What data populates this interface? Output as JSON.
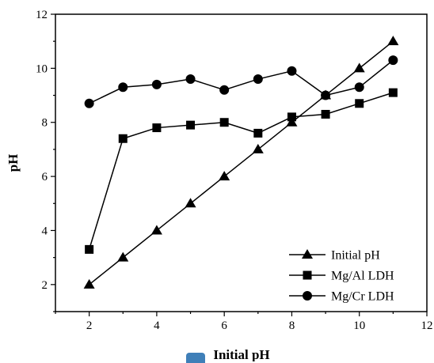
{
  "chart_data": {
    "type": "line",
    "title": "",
    "xlabel": "Initial pH",
    "ylabel": "pH",
    "xlim": [
      1,
      12
    ],
    "ylim": [
      1,
      12
    ],
    "xticks": [
      2,
      4,
      6,
      8,
      10,
      12
    ],
    "yticks": [
      2,
      4,
      6,
      8,
      10,
      12
    ],
    "x": [
      2,
      3,
      4,
      5,
      6,
      7,
      8,
      9,
      10,
      11
    ],
    "series": [
      {
        "name": "Initial pH",
        "marker": "triangle",
        "values": [
          2,
          3,
          4,
          5,
          6,
          7,
          8,
          9,
          10,
          11
        ]
      },
      {
        "name": "Mg/Al LDH",
        "marker": "square",
        "values": [
          3.3,
          7.4,
          7.8,
          7.9,
          8.0,
          7.6,
          8.2,
          8.3,
          8.7,
          9.1
        ]
      },
      {
        "name": "Mg/Cr LDH",
        "marker": "circle",
        "values": [
          8.7,
          9.3,
          9.4,
          9.6,
          9.2,
          9.6,
          9.9,
          9.0,
          9.3,
          10.3
        ]
      }
    ],
    "grid": false,
    "legend_position": "bottom-right",
    "line_color": "#000000"
  }
}
